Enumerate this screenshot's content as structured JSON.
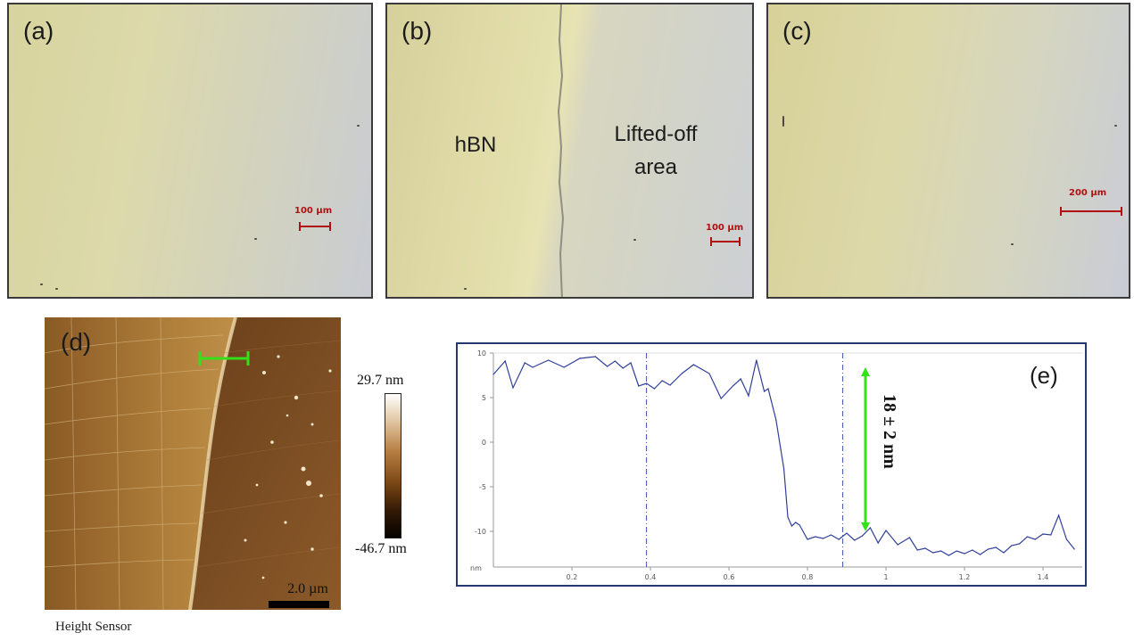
{
  "panels": {
    "a": {
      "label": "(a)",
      "scale_text": "100 µm"
    },
    "b": {
      "label": "(b)",
      "scale_text": "100 µm",
      "region_left": "hBN",
      "region_right_line1": "Lifted-off",
      "region_right_line2": "area"
    },
    "c": {
      "label": "(c)",
      "scale_text": "200 µm"
    },
    "d": {
      "label": "(d)",
      "scale_text": "2.0 µm",
      "caption": "Height Sensor",
      "colorbar_max": "29.7 nm",
      "colorbar_min": "-46.7 nm"
    },
    "e": {
      "label": "(e)",
      "annotation": "18 ± 2 nm"
    }
  },
  "colors": {
    "scale_bar": "#b01010",
    "profile_line": "#2f3f9a",
    "measurement": "#33e01a",
    "frame": "#243a6e"
  },
  "chart_data": {
    "type": "line",
    "title": "",
    "xlabel": "",
    "ylabel": "nm",
    "xlim": [
      0,
      1.5
    ],
    "ylim": [
      -14,
      10
    ],
    "x_ticks": [
      "0.2",
      "0.4",
      "0.6",
      "0.8",
      "1",
      "1.2",
      "1.4"
    ],
    "y_ticks": [
      "10",
      "5",
      "0",
      "-5",
      "-10"
    ],
    "cursor_x": [
      0.39,
      0.89
    ],
    "grid": false,
    "series": [
      {
        "x": [
          0.0,
          0.03,
          0.05,
          0.08,
          0.1,
          0.14,
          0.18,
          0.22,
          0.26,
          0.29,
          0.31,
          0.33,
          0.35,
          0.37,
          0.39,
          0.41,
          0.43,
          0.45,
          0.48,
          0.51,
          0.55,
          0.58,
          0.61,
          0.63,
          0.65,
          0.67,
          0.69,
          0.7,
          0.72,
          0.74,
          0.75,
          0.76,
          0.77,
          0.78,
          0.8,
          0.82,
          0.84,
          0.86,
          0.88,
          0.9,
          0.92,
          0.94,
          0.96,
          0.98,
          1.0,
          1.03,
          1.06,
          1.08,
          1.1,
          1.12,
          1.14,
          1.16,
          1.18,
          1.2,
          1.22,
          1.24,
          1.26,
          1.28,
          1.3,
          1.32,
          1.34,
          1.36,
          1.38,
          1.4,
          1.42,
          1.44,
          1.46,
          1.48
        ],
        "y": [
          7.6,
          9.1,
          6.1,
          8.9,
          8.4,
          9.2,
          8.4,
          9.4,
          9.6,
          8.5,
          9.1,
          8.3,
          8.9,
          6.3,
          6.6,
          6.0,
          6.9,
          6.4,
          7.7,
          8.7,
          7.7,
          4.9,
          6.3,
          7.1,
          5.2,
          9.2,
          5.7,
          6.0,
          2.5,
          -3.0,
          -8.4,
          -9.4,
          -9.0,
          -9.3,
          -10.9,
          -10.6,
          -10.8,
          -10.4,
          -10.9,
          -10.2,
          -11.0,
          -10.5,
          -9.6,
          -11.3,
          -9.9,
          -11.5,
          -10.7,
          -12.1,
          -11.9,
          -12.4,
          -12.2,
          -12.7,
          -12.2,
          -12.5,
          -12.1,
          -12.6,
          -12.0,
          -11.8,
          -12.4,
          -11.6,
          -11.4,
          -10.6,
          -10.9,
          -10.3,
          -10.4,
          -8.2,
          -10.9,
          -12.0
        ]
      }
    ]
  }
}
